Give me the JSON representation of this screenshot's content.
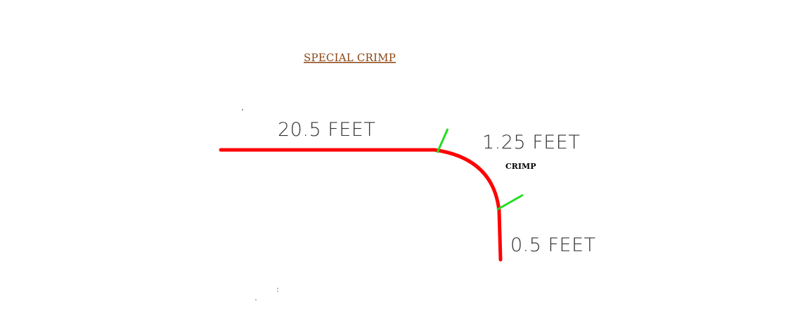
{
  "title": "SPECIAL CRIMP",
  "segments": [
    {
      "label": "20.5 FEET"
    },
    {
      "label": "1.25 FEET",
      "note": "CRIMP"
    },
    {
      "label": "0.5 FEET"
    }
  ],
  "colors": {
    "profile": "#ff0000",
    "marker": "#22dd22",
    "title": "#8b4513",
    "text": "#333333",
    "note": "#000000"
  }
}
